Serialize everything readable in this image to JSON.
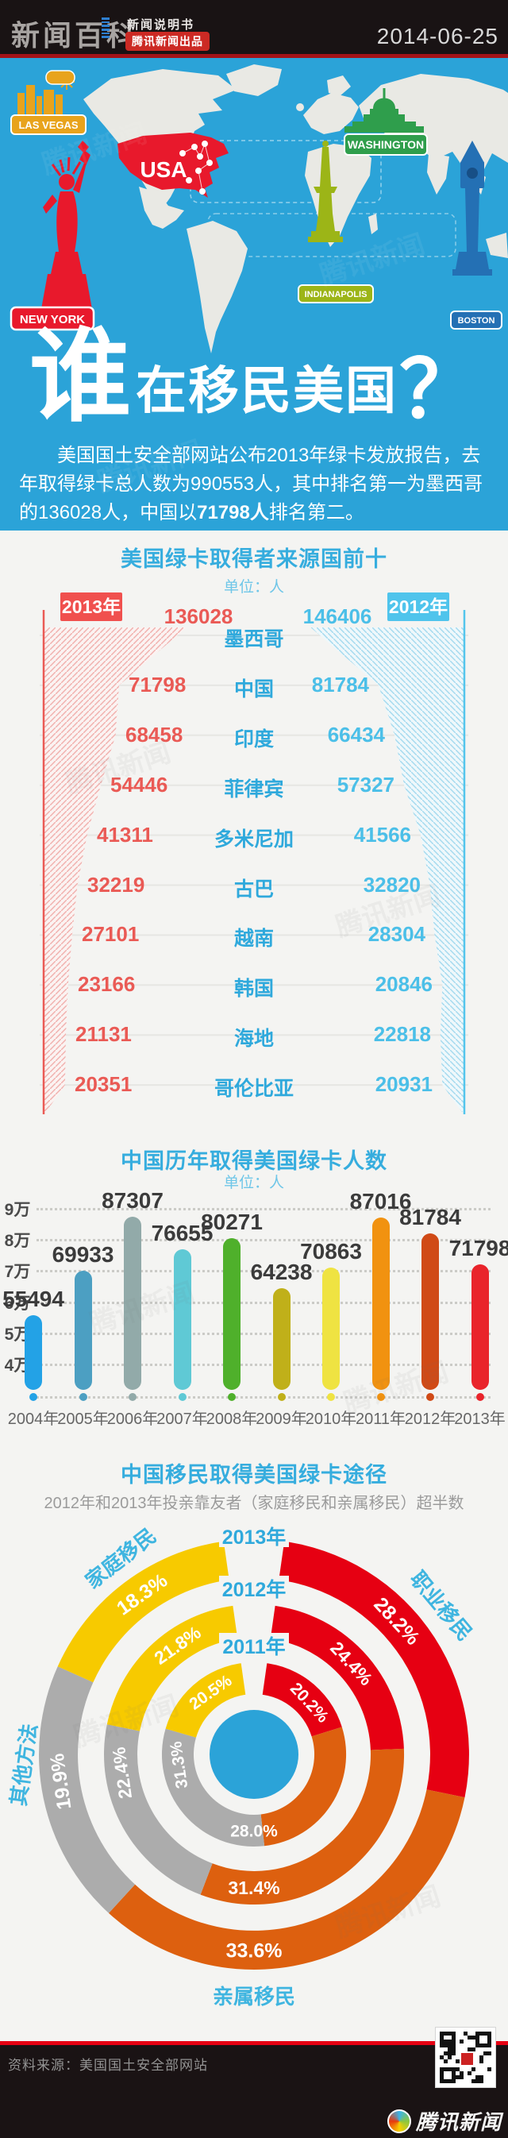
{
  "header": {
    "logo": "新闻百科",
    "tagline": "新闻说明书",
    "badge": "腾讯新闻出品",
    "date": "2014-06-25"
  },
  "map": {
    "usa_label": "USA",
    "cities": {
      "las_vegas": {
        "label": "LAS VEGAS",
        "color": "#E8A31C"
      },
      "washington": {
        "label": "WASHINGTON",
        "color": "#2F9E4C"
      },
      "new_york": {
        "label": "NEW YORK",
        "color": "#E8192C"
      },
      "indianapolis": {
        "label": "INDIANAPOLIS",
        "color": "#9CB517"
      },
      "boston": {
        "label": "BOSTON",
        "color": "#2470B4"
      }
    }
  },
  "hero": {
    "lead": "谁",
    "rest": "在移民美国",
    "qmark": "？"
  },
  "intro": {
    "part1": "美国国土安全部网站公布2013年绿卡发放报告，去年取得绿卡总人数为990553人，其中排名第一为墨西哥的136028人，中国以",
    "highlight": "71798人",
    "part2": "排名第二。"
  },
  "footer": {
    "source": "资料来源：美国国土安全部网站",
    "brand": "腾讯新闻"
  },
  "chart_data": [
    {
      "type": "bar",
      "variant": "tornado-funnel",
      "title": "美国绿卡取得者来源国前十",
      "unit_label": "单位：人",
      "categories": [
        "墨西哥",
        "中国",
        "印度",
        "菲律宾",
        "多米尼加",
        "古巴",
        "越南",
        "韩国",
        "海地",
        "哥伦比亚"
      ],
      "series": [
        {
          "name": "2013年",
          "color": "#F0504E",
          "values": [
            136028,
            71798,
            68458,
            54446,
            41311,
            32219,
            27101,
            23166,
            21131,
            20351
          ]
        },
        {
          "name": "2012年",
          "color": "#4FC4EC",
          "values": [
            146406,
            81784,
            66434,
            57327,
            41566,
            32820,
            28304,
            20846,
            22818,
            20931
          ]
        }
      ]
    },
    {
      "type": "bar",
      "title": "中国历年取得美国绿卡人数",
      "unit_label": "单位：人",
      "categories": [
        "2004年",
        "2005年",
        "2006年",
        "2007年",
        "2008年",
        "2009年",
        "2010年",
        "2011年",
        "2012年",
        "2013年"
      ],
      "values": [
        55494,
        69933,
        87307,
        76655,
        80271,
        64238,
        70863,
        87016,
        81784,
        71798
      ],
      "colors": [
        "#23A2E6",
        "#4C9FC2",
        "#92AAA9",
        "#5FC9D5",
        "#4FB02B",
        "#C0B019",
        "#EFE342",
        "#F19210",
        "#D04A16",
        "#E9242B"
      ],
      "ylabel_ticks": [
        "9万",
        "8万",
        "7万",
        "6万",
        "5万",
        "4万"
      ],
      "ylim": [
        40000,
        90000
      ],
      "grid": "dotted"
    },
    {
      "type": "pie",
      "variant": "concentric-donut",
      "title": "中国移民取得美国绿卡途径",
      "subtitle": "2012年和2013年投亲靠友者（家庭移民和亲属移民）超半数",
      "categories": [
        {
          "name": "职业移民",
          "color": "#E60012"
        },
        {
          "name": "亲属移民",
          "color": "#DD600F"
        },
        {
          "name": "其他方法",
          "color": "#ACACAC"
        },
        {
          "name": "家庭移民",
          "color": "#F7CA00"
        }
      ],
      "rings": [
        {
          "label": "2013年",
          "values": [
            28.2,
            33.6,
            19.9,
            18.3
          ]
        },
        {
          "label": "2012年",
          "values": [
            24.4,
            31.4,
            22.4,
            21.8
          ]
        },
        {
          "label": "2011年",
          "values": [
            20.2,
            28.0,
            31.3,
            20.5
          ]
        }
      ],
      "center_color": "#2BA3D8"
    }
  ]
}
